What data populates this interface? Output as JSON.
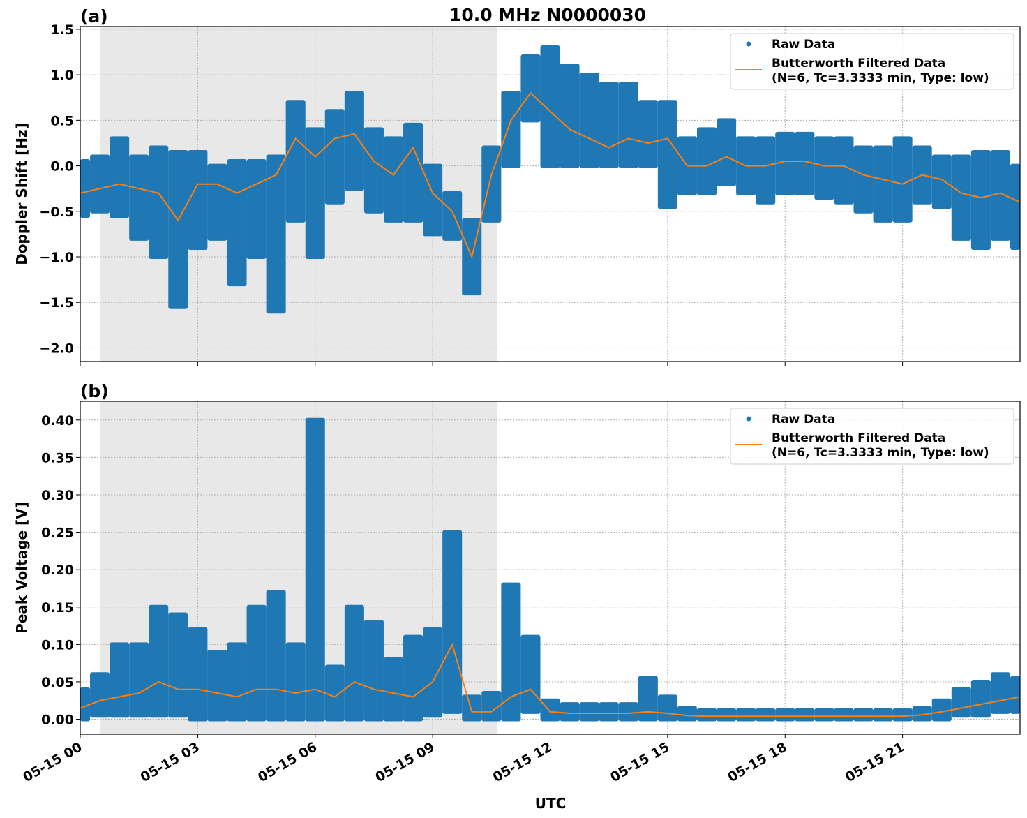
{
  "title": "10.0 MHz N0000030",
  "xlabel": "UTC",
  "colors": {
    "raw": "#1f77b4",
    "filtered": "#ff7f0e",
    "shade": "#e8e8e8"
  },
  "legend": {
    "raw": "Raw Data",
    "filtered_line1": "Butterworth Filtered Data",
    "filtered_line2": "(N=6, Tc=3.3333 min, Type: low)",
    "placement": "top-right"
  },
  "chart_data": [
    {
      "type": "scatter+line",
      "panel_label": "(a)",
      "ylabel": "Doppler Shift [Hz]",
      "xlim_hours": [
        0,
        24
      ],
      "ylim": [
        -2.15,
        1.53
      ],
      "yticks": [
        -2.0,
        -1.5,
        -1.0,
        -0.5,
        0.0,
        0.5,
        1.0,
        1.5
      ],
      "ytick_labels": [
        "−2.0",
        "−1.5",
        "−1.0",
        "−0.5",
        "0.0",
        "0.5",
        "1.0",
        "1.5"
      ],
      "grid": true,
      "shaded_hours": [
        0.5,
        10.65
      ],
      "x_hours": [
        0,
        0.5,
        1,
        1.5,
        2,
        2.5,
        3,
        3.5,
        4,
        4.5,
        5,
        5.5,
        6,
        6.5,
        7,
        7.5,
        8,
        8.5,
        9,
        9.5,
        10,
        10.5,
        11,
        11.5,
        12,
        12.5,
        13,
        13.5,
        14,
        14.5,
        15,
        15.5,
        16,
        16.5,
        17,
        17.5,
        18,
        18.5,
        19,
        19.5,
        20,
        20.5,
        21,
        21.5,
        22,
        22.5,
        23,
        23.5,
        24
      ],
      "series": [
        {
          "name": "Butterworth Filtered Data",
          "values": [
            -0.3,
            -0.25,
            -0.2,
            -0.25,
            -0.3,
            -0.6,
            -0.2,
            -0.2,
            -0.3,
            -0.2,
            -0.1,
            0.3,
            0.1,
            0.3,
            0.35,
            0.05,
            -0.1,
            0.2,
            -0.3,
            -0.5,
            -1.0,
            -0.1,
            0.5,
            0.8,
            0.6,
            0.4,
            0.3,
            0.2,
            0.3,
            0.25,
            0.3,
            0.0,
            0.0,
            0.1,
            0.0,
            0.0,
            0.05,
            0.05,
            0.0,
            0.0,
            -0.1,
            -0.15,
            -0.2,
            -0.1,
            -0.15,
            -0.3,
            -0.35,
            -0.3,
            -0.4
          ]
        },
        {
          "name": "Raw Data",
          "low": [
            -0.55,
            -0.5,
            -0.55,
            -0.8,
            -1.0,
            -1.55,
            -0.9,
            -0.8,
            -1.3,
            -1.0,
            -1.6,
            -0.6,
            -1.0,
            -0.4,
            -0.25,
            -0.5,
            -0.6,
            -0.6,
            -0.75,
            -0.8,
            -1.4,
            -0.6,
            0.0,
            0.5,
            0.0,
            0.0,
            0.0,
            0.0,
            0.0,
            0.0,
            -0.45,
            -0.3,
            -0.3,
            -0.2,
            -0.3,
            -0.4,
            -0.3,
            -0.3,
            -0.35,
            -0.4,
            -0.5,
            -0.6,
            -0.6,
            -0.4,
            -0.45,
            -0.8,
            -0.9,
            -0.8,
            -0.9
          ],
          "high": [
            0.05,
            0.1,
            0.3,
            0.1,
            0.2,
            0.15,
            0.15,
            0.0,
            0.05,
            0.05,
            0.1,
            0.7,
            0.4,
            0.6,
            0.8,
            0.4,
            0.3,
            0.45,
            0.0,
            -0.3,
            -0.6,
            0.2,
            0.8,
            1.2,
            1.3,
            1.1,
            1.0,
            0.9,
            0.9,
            0.7,
            0.7,
            0.3,
            0.4,
            0.5,
            0.3,
            0.3,
            0.35,
            0.35,
            0.3,
            0.3,
            0.2,
            0.2,
            0.3,
            0.2,
            0.1,
            0.1,
            0.15,
            0.15,
            0.0
          ]
        }
      ]
    },
    {
      "type": "scatter+line",
      "panel_label": "(b)",
      "ylabel": "Peak Voltage [V]",
      "xlim_hours": [
        0,
        24
      ],
      "ylim": [
        -0.02,
        0.425
      ],
      "yticks": [
        0.0,
        0.05,
        0.1,
        0.15,
        0.2,
        0.25,
        0.3,
        0.35,
        0.4
      ],
      "ytick_labels": [
        "0.00",
        "0.05",
        "0.10",
        "0.15",
        "0.20",
        "0.25",
        "0.30",
        "0.35",
        "0.40"
      ],
      "xticks_hours": [
        0,
        3,
        6,
        9,
        12,
        15,
        18,
        21
      ],
      "xtick_labels": [
        "05-15 00",
        "05-15 03",
        "05-15 06",
        "05-15 09",
        "05-15 12",
        "05-15 15",
        "05-15 18",
        "05-15 21"
      ],
      "grid": true,
      "shaded_hours": [
        0.5,
        10.65
      ],
      "x_hours": [
        0,
        0.5,
        1,
        1.5,
        2,
        2.5,
        3,
        3.5,
        4,
        4.5,
        5,
        5.5,
        6,
        6.5,
        7,
        7.5,
        8,
        8.5,
        9,
        9.5,
        10,
        10.5,
        11,
        11.5,
        12,
        12.5,
        13,
        13.5,
        14,
        14.5,
        15,
        15.5,
        16,
        16.5,
        17,
        17.5,
        18,
        18.5,
        19,
        19.5,
        20,
        20.5,
        21,
        21.5,
        22,
        22.5,
        23,
        23.5,
        24
      ],
      "series": [
        {
          "name": "Butterworth Filtered Data",
          "values": [
            0.015,
            0.025,
            0.03,
            0.035,
            0.05,
            0.04,
            0.04,
            0.035,
            0.03,
            0.04,
            0.04,
            0.035,
            0.04,
            0.03,
            0.05,
            0.04,
            0.035,
            0.03,
            0.05,
            0.1,
            0.01,
            0.01,
            0.03,
            0.04,
            0.01,
            0.008,
            0.008,
            0.008,
            0.008,
            0.01,
            0.008,
            0.005,
            0.004,
            0.004,
            0.004,
            0.004,
            0.004,
            0.004,
            0.004,
            0.004,
            0.004,
            0.004,
            0.004,
            0.006,
            0.01,
            0.015,
            0.02,
            0.025,
            0.03
          ]
        },
        {
          "name": "Raw Data",
          "low": [
            0,
            0.005,
            0.005,
            0.005,
            0.005,
            0.005,
            0,
            0,
            0,
            0,
            0,
            0,
            0,
            0,
            0,
            0,
            0,
            0,
            0.005,
            0.01,
            0,
            0,
            0,
            0.01,
            0,
            0,
            0,
            0,
            0,
            0,
            0,
            0,
            0,
            0,
            0,
            0,
            0,
            0,
            0,
            0,
            0,
            0,
            0,
            0,
            0,
            0.005,
            0.005,
            0.01,
            0.01
          ],
          "high": [
            0.04,
            0.06,
            0.1,
            0.1,
            0.15,
            0.14,
            0.12,
            0.09,
            0.1,
            0.15,
            0.17,
            0.1,
            0.4,
            0.07,
            0.15,
            0.13,
            0.08,
            0.11,
            0.12,
            0.25,
            0.03,
            0.035,
            0.18,
            0.11,
            0.025,
            0.02,
            0.02,
            0.02,
            0.02,
            0.055,
            0.03,
            0.015,
            0.012,
            0.012,
            0.012,
            0.012,
            0.012,
            0.012,
            0.012,
            0.012,
            0.012,
            0.012,
            0.012,
            0.015,
            0.025,
            0.04,
            0.05,
            0.06,
            0.055
          ]
        }
      ]
    }
  ]
}
